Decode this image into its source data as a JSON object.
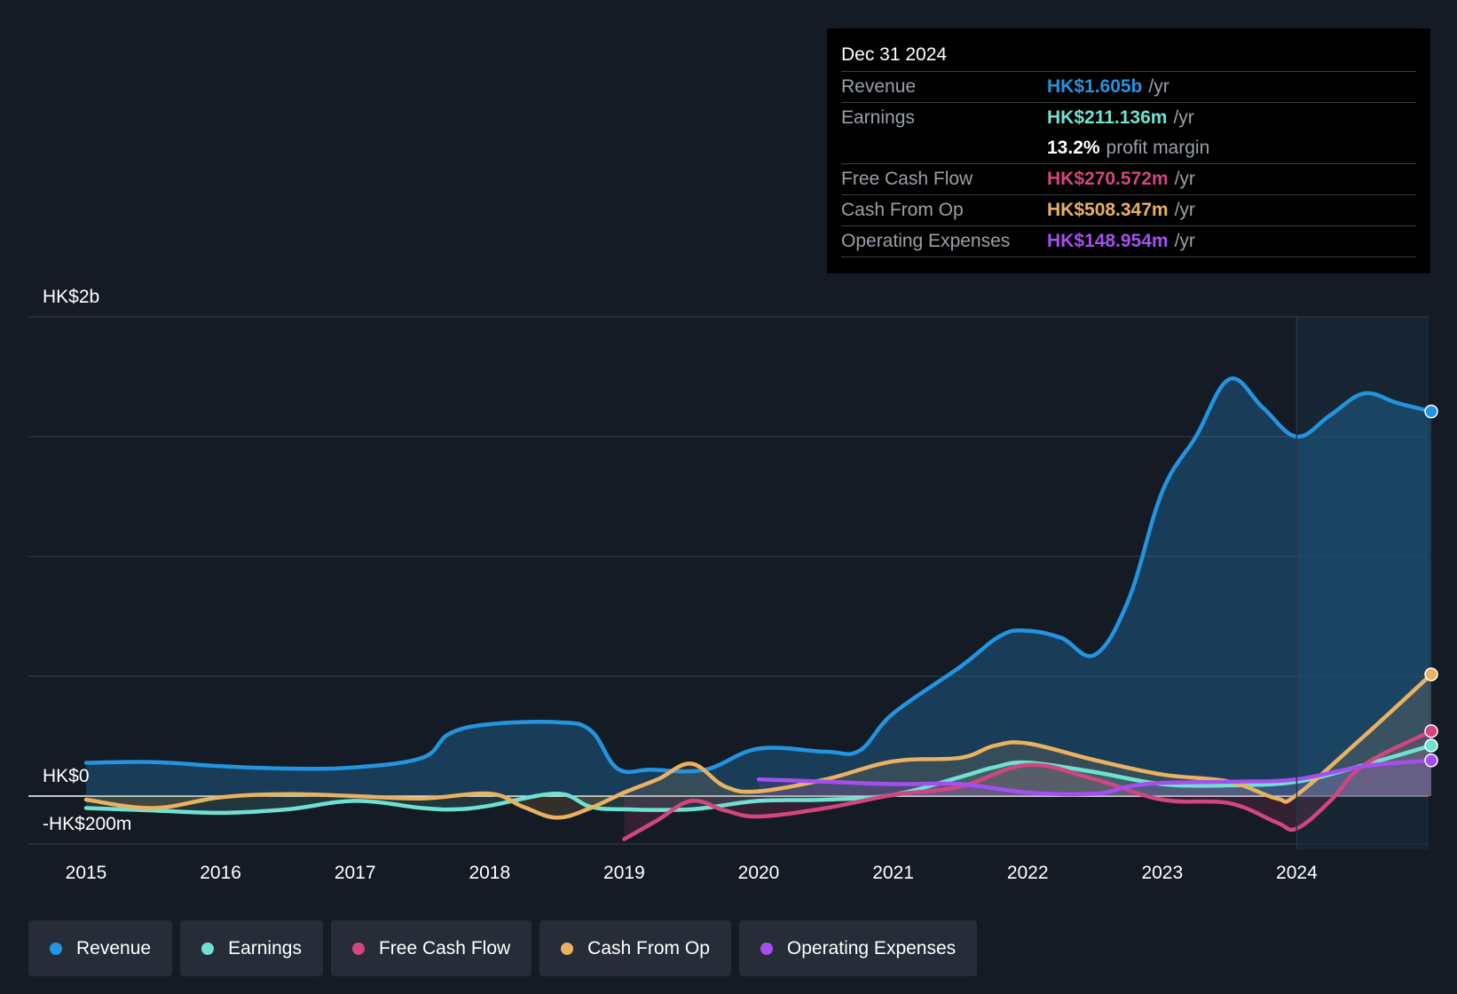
{
  "colors": {
    "background": "#151b24",
    "revenue": "#2394df",
    "earnings": "#6ee2d2",
    "fcf": "#d1467f",
    "cfo": "#e9b260",
    "opex": "#a64ff0"
  },
  "tooltip": {
    "date": "Dec 31 2024",
    "rows": [
      {
        "label": "Revenue",
        "value": "HK$1.605b",
        "unit": "/yr"
      },
      {
        "label": "Earnings",
        "value": "HK$211.136m",
        "unit": "/yr"
      },
      {
        "label": "",
        "value": "13.2%",
        "unit": "profit margin"
      },
      {
        "label": "Free Cash Flow",
        "value": "HK$270.572m",
        "unit": "/yr"
      },
      {
        "label": "Cash From Op",
        "value": "HK$508.347m",
        "unit": "/yr"
      },
      {
        "label": "Operating Expenses",
        "value": "HK$148.954m",
        "unit": "/yr"
      }
    ]
  },
  "legend": [
    {
      "label": "Revenue",
      "color": "#2394df"
    },
    {
      "label": "Earnings",
      "color": "#6ee2d2"
    },
    {
      "label": "Free Cash Flow",
      "color": "#d1467f"
    },
    {
      "label": "Cash From Op",
      "color": "#e9b260"
    },
    {
      "label": "Operating Expenses",
      "color": "#a64ff0"
    }
  ],
  "chart_data": {
    "type": "area",
    "title": "",
    "xlabel": "",
    "ylabel": "",
    "ylim": [
      -200,
      2000
    ],
    "y_labels": [
      {
        "value": 2000,
        "label": "HK$2b"
      },
      {
        "value": 0,
        "label": "HK$0"
      },
      {
        "value": -200,
        "label": "-HK$200m"
      }
    ],
    "x_ticks": [
      2015,
      2016,
      2017,
      2018,
      2019,
      2020,
      2021,
      2022,
      2023,
      2024
    ],
    "x_tick_labels": [
      "2015",
      "2016",
      "2017",
      "2018",
      "2019",
      "2020",
      "2021",
      "2022",
      "2023",
      "2024"
    ],
    "xlim": [
      2014.6,
      2025.0
    ],
    "gridlines": [
      2000,
      1500,
      1000,
      500,
      0,
      -200
    ],
    "highlight_start": 2024.0,
    "series": [
      {
        "name": "Revenue",
        "key": "revenue",
        "points": [
          [
            2015.0,
            139
          ],
          [
            2015.5,
            142
          ],
          [
            2016.0,
            125
          ],
          [
            2016.5,
            115
          ],
          [
            2017.0,
            120
          ],
          [
            2017.5,
            160
          ],
          [
            2017.7,
            260
          ],
          [
            2018.0,
            300
          ],
          [
            2018.5,
            308
          ],
          [
            2018.75,
            275
          ],
          [
            2018.95,
            115
          ],
          [
            2019.2,
            110
          ],
          [
            2019.6,
            110
          ],
          [
            2020.0,
            198
          ],
          [
            2020.5,
            185
          ],
          [
            2020.75,
            190
          ],
          [
            2021.0,
            345
          ],
          [
            2021.5,
            540
          ],
          [
            2021.8,
            670
          ],
          [
            2022.0,
            690
          ],
          [
            2022.25,
            660
          ],
          [
            2022.5,
            590
          ],
          [
            2022.75,
            820
          ],
          [
            2023.0,
            1270
          ],
          [
            2023.25,
            1500
          ],
          [
            2023.5,
            1740
          ],
          [
            2023.75,
            1620
          ],
          [
            2024.0,
            1500
          ],
          [
            2024.25,
            1590
          ],
          [
            2024.5,
            1680
          ],
          [
            2024.75,
            1640
          ],
          [
            2025.0,
            1605
          ]
        ]
      },
      {
        "name": "Earnings",
        "key": "earnings",
        "points": [
          [
            2015.0,
            -50
          ],
          [
            2015.5,
            -60
          ],
          [
            2016.0,
            -70
          ],
          [
            2016.5,
            -55
          ],
          [
            2017.0,
            -20
          ],
          [
            2017.5,
            -50
          ],
          [
            2017.75,
            -55
          ],
          [
            2018.0,
            -40
          ],
          [
            2018.5,
            10
          ],
          [
            2018.75,
            -45
          ],
          [
            2019.0,
            -55
          ],
          [
            2019.5,
            -55
          ],
          [
            2020.0,
            -20
          ],
          [
            2020.5,
            -15
          ],
          [
            2021.0,
            5
          ],
          [
            2021.5,
            80
          ],
          [
            2021.75,
            120
          ],
          [
            2022.0,
            140
          ],
          [
            2022.5,
            100
          ],
          [
            2023.0,
            50
          ],
          [
            2023.5,
            45
          ],
          [
            2024.0,
            60
          ],
          [
            2024.5,
            130
          ],
          [
            2025.0,
            211
          ]
        ]
      },
      {
        "name": "Free Cash Flow",
        "key": "fcf",
        "points": [
          [
            2019.0,
            -180
          ],
          [
            2019.25,
            -100
          ],
          [
            2019.5,
            -20
          ],
          [
            2019.75,
            -60
          ],
          [
            2020.0,
            -85
          ],
          [
            2020.5,
            -50
          ],
          [
            2021.0,
            5
          ],
          [
            2021.5,
            40
          ],
          [
            2022.0,
            130
          ],
          [
            2022.5,
            70
          ],
          [
            2023.0,
            -15
          ],
          [
            2023.5,
            -30
          ],
          [
            2023.85,
            -110
          ],
          [
            2024.0,
            -135
          ],
          [
            2024.25,
            -20
          ],
          [
            2024.5,
            130
          ],
          [
            2025.0,
            271
          ]
        ]
      },
      {
        "name": "Cash From Op",
        "key": "cfo",
        "points": [
          [
            2015.0,
            -15
          ],
          [
            2015.5,
            -50
          ],
          [
            2016.0,
            -5
          ],
          [
            2016.5,
            8
          ],
          [
            2017.0,
            0
          ],
          [
            2017.5,
            -10
          ],
          [
            2018.0,
            10
          ],
          [
            2018.25,
            -45
          ],
          [
            2018.5,
            -90
          ],
          [
            2018.75,
            -50
          ],
          [
            2019.0,
            15
          ],
          [
            2019.25,
            70
          ],
          [
            2019.5,
            135
          ],
          [
            2019.75,
            40
          ],
          [
            2020.0,
            20
          ],
          [
            2020.5,
            70
          ],
          [
            2021.0,
            145
          ],
          [
            2021.5,
            160
          ],
          [
            2021.75,
            210
          ],
          [
            2022.0,
            220
          ],
          [
            2022.5,
            150
          ],
          [
            2023.0,
            90
          ],
          [
            2023.5,
            60
          ],
          [
            2023.85,
            -10
          ],
          [
            2024.0,
            5
          ],
          [
            2024.5,
            250
          ],
          [
            2025.0,
            508
          ]
        ]
      },
      {
        "name": "Operating Expenses",
        "key": "opex",
        "points": [
          [
            2020.0,
            70
          ],
          [
            2020.5,
            60
          ],
          [
            2021.0,
            50
          ],
          [
            2021.5,
            50
          ],
          [
            2022.0,
            15
          ],
          [
            2022.5,
            10
          ],
          [
            2022.75,
            40
          ],
          [
            2023.0,
            55
          ],
          [
            2023.5,
            60
          ],
          [
            2024.0,
            70
          ],
          [
            2024.5,
            125
          ],
          [
            2025.0,
            149
          ]
        ]
      }
    ]
  }
}
